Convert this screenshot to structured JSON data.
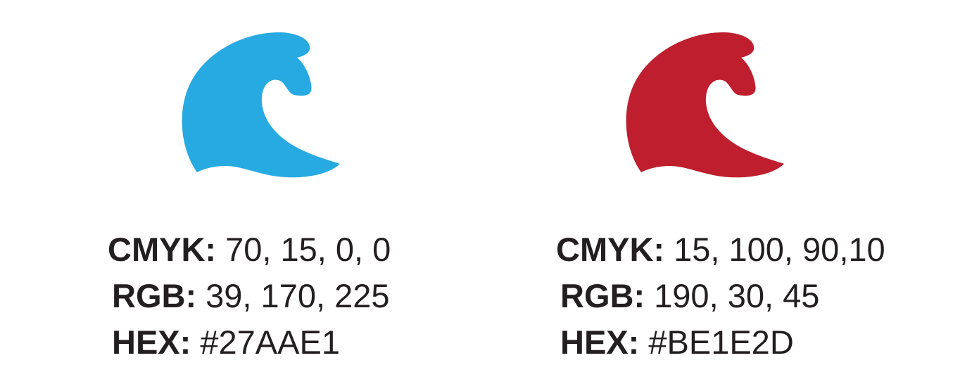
{
  "swatches": [
    {
      "color": "#27AAE1",
      "icon": "wave-icon",
      "cmyk": {
        "label": "CMYK:",
        "value": "70, 15, 0, 0"
      },
      "rgb": {
        "label": "RGB:",
        "value": "39, 170, 225"
      },
      "hex": {
        "label": "HEX:",
        "value": "#27AAE1"
      }
    },
    {
      "color": "#BE1E2D",
      "icon": "wave-icon",
      "cmyk": {
        "label": "CMYK:",
        "value": "15, 100, 90,10"
      },
      "rgb": {
        "label": "RGB:",
        "value": "190, 30, 45"
      },
      "hex": {
        "label": "HEX:",
        "value": "#BE1E2D"
      }
    }
  ]
}
